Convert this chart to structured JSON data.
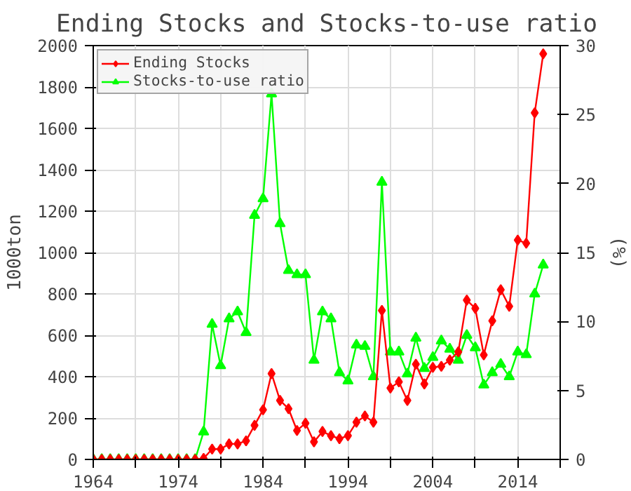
{
  "chart_data": {
    "type": "line",
    "title": "Ending Stocks and Stocks-to-use ratio",
    "ylabel": "1000ton",
    "y2label": "(%)",
    "x": [
      1964,
      1965,
      1966,
      1967,
      1968,
      1969,
      1970,
      1971,
      1972,
      1973,
      1974,
      1975,
      1976,
      1977,
      1978,
      1979,
      1980,
      1981,
      1982,
      1983,
      1984,
      1985,
      1986,
      1987,
      1988,
      1989,
      1990,
      1991,
      1992,
      1993,
      1994,
      1995,
      1996,
      1997,
      1998,
      1999,
      2000,
      2001,
      2002,
      2003,
      2004,
      2005,
      2006,
      2007,
      2008,
      2009,
      2010,
      2011,
      2012,
      2013,
      2014,
      2015,
      2016,
      2017
    ],
    "series": [
      {
        "name": "Ending Stocks",
        "color": "#ff0000",
        "marker": "diamond",
        "values": [
          0,
          0,
          0,
          0,
          0,
          0,
          0,
          0,
          0,
          0,
          0,
          0,
          0,
          5,
          50,
          50,
          75,
          75,
          90,
          165,
          240,
          415,
          285,
          245,
          140,
          175,
          85,
          135,
          115,
          100,
          115,
          180,
          210,
          180,
          720,
          345,
          375,
          285,
          460,
          365,
          445,
          450,
          480,
          520,
          770,
          730,
          505,
          670,
          820,
          740,
          1060,
          1045,
          1675,
          1960
        ]
      },
      {
        "name": "Stocks-to-use ratio",
        "color": "#00ff00",
        "marker": "triangle",
        "axis": "y2",
        "values": [
          0,
          0,
          0,
          0,
          0,
          0,
          0,
          0,
          0,
          0,
          0,
          0,
          0,
          2,
          9.8,
          6.8,
          10.2,
          10.7,
          9.2,
          17.7,
          18.9,
          26.5,
          17.1,
          13.7,
          13.4,
          13.4,
          7.2,
          10.7,
          10.2,
          6.3,
          5.7,
          8.3,
          8.2,
          6.0,
          20.1,
          7.8,
          7.8,
          6.2,
          8.8,
          6.6,
          7.4,
          8.6,
          8.0,
          7.2,
          9.0,
          8.1,
          5.4,
          6.3,
          6.9,
          6.0,
          7.8,
          7.6,
          12.0,
          14.1
        ]
      }
    ],
    "xlim": [
      1964,
      2019
    ],
    "xticks": [
      1964,
      {
        "value": 1969,
        "label": null
      },
      1974,
      {
        "value": 1979,
        "label": null
      },
      1984,
      {
        "value": 1989,
        "label": null
      },
      1994,
      {
        "value": 1999,
        "label": null
      },
      2004,
      {
        "value": 2009,
        "label": null
      },
      2014,
      {
        "value": 2019,
        "label": null
      }
    ],
    "ylim": [
      0,
      2000
    ],
    "yticks": [
      0,
      200,
      400,
      600,
      800,
      1000,
      1200,
      1400,
      1600,
      1800,
      2000
    ],
    "y2lim": [
      0,
      30
    ],
    "y2ticks": [
      0,
      5,
      10,
      15,
      20,
      25,
      30
    ],
    "grid": true,
    "legend": "top left",
    "line_style": "solid"
  }
}
